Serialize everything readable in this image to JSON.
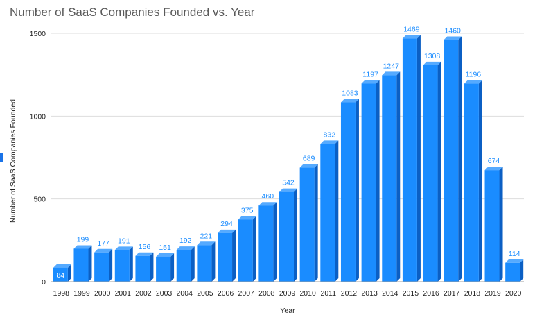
{
  "chart_data": {
    "type": "bar",
    "title": "Number of SaaS Companies Founded vs. Year",
    "xlabel": "Year",
    "ylabel": "Number of SaaS Companies Founded",
    "ylim": [
      0,
      1500
    ],
    "yticks": [
      0,
      500,
      1000,
      1500
    ],
    "grid": true,
    "legend": "none",
    "bar_style": "3d",
    "colors": {
      "bar_front": "#1a8cff",
      "bar_top": "#55aaff",
      "bar_side": "#0b5fc4",
      "label": "#1a8cff"
    },
    "categories": [
      "1998",
      "1999",
      "2000",
      "2001",
      "2002",
      "2003",
      "2004",
      "2005",
      "2006",
      "2007",
      "2008",
      "2009",
      "2010",
      "2011",
      "2012",
      "2013",
      "2014",
      "2015",
      "2016",
      "2017",
      "2018",
      "2019",
      "2020"
    ],
    "values": [
      84,
      199,
      177,
      191,
      156,
      151,
      192,
      221,
      294,
      375,
      460,
      542,
      689,
      832,
      1083,
      1197,
      1247,
      1469,
      1308,
      1460,
      1196,
      674,
      114
    ]
  }
}
